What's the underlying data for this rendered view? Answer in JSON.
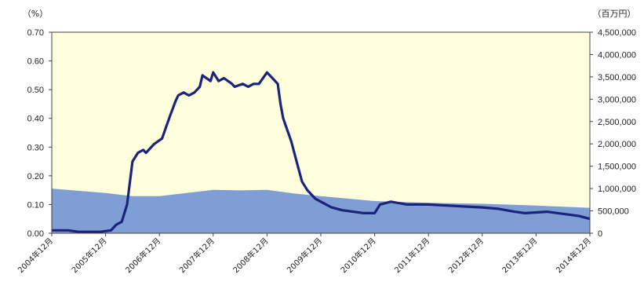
{
  "chart_data": {
    "type": "line",
    "title": "",
    "left_axis": {
      "unit_label": "（%）",
      "ylim": [
        0,
        0.7
      ],
      "ticks": [
        "0.00",
        "0.10",
        "0.20",
        "0.30",
        "0.40",
        "0.50",
        "0.60",
        "0.70"
      ]
    },
    "right_axis": {
      "unit_label": "（百万円）",
      "ylim": [
        0,
        4500000
      ],
      "ticks": [
        "0",
        "500,000",
        "1,000,000",
        "1,500,000",
        "2,000,000",
        "2,500,000",
        "3,000,000",
        "3,500,000",
        "4,000,000",
        "4,500,000"
      ]
    },
    "categories": [
      "2004年12月",
      "2005年12月",
      "2006年12月",
      "2007年12月",
      "2008年12月",
      "2009年12月",
      "2010年12月",
      "2011年12月",
      "2012年12月",
      "2013年12月",
      "2014年12月"
    ],
    "series": [
      {
        "kind": "area",
        "axis": "right",
        "color": "#7f9fd4",
        "x": [
          0,
          1,
          1.5,
          2,
          2.5,
          3,
          3.5,
          4,
          4.5,
          5,
          6,
          7,
          8,
          9,
          10
        ],
        "values": [
          1000000,
          900000,
          830000,
          830000,
          900000,
          970000,
          960000,
          970000,
          890000,
          830000,
          720000,
          680000,
          660000,
          620000,
          570000
        ]
      },
      {
        "kind": "line",
        "axis": "left",
        "color": "#1a237e",
        "x": [
          0,
          0.3,
          0.5,
          0.7,
          0.9,
          1.1,
          1.2,
          1.3,
          1.4,
          1.5,
          1.6,
          1.7,
          1.75,
          1.9,
          2.05,
          2.2,
          2.3,
          2.35,
          2.45,
          2.55,
          2.65,
          2.75,
          2.8,
          2.95,
          3.0,
          3.1,
          3.2,
          3.35,
          3.4,
          3.55,
          3.65,
          3.75,
          3.85,
          4.0,
          4.1,
          4.2,
          4.25,
          4.3,
          4.45,
          4.55,
          4.65,
          4.75,
          4.9,
          5.0,
          5.2,
          5.4,
          5.6,
          5.8,
          6.0,
          6.1,
          6.3,
          6.6,
          7.0,
          7.5,
          8.0,
          8.3,
          8.6,
          8.8,
          9.2,
          9.6,
          9.8,
          10.0
        ],
        "values": [
          0.01,
          0.01,
          0.005,
          0.005,
          0.005,
          0.01,
          0.03,
          0.04,
          0.1,
          0.25,
          0.28,
          0.29,
          0.28,
          0.31,
          0.33,
          0.41,
          0.46,
          0.48,
          0.49,
          0.48,
          0.49,
          0.51,
          0.55,
          0.53,
          0.56,
          0.53,
          0.54,
          0.52,
          0.51,
          0.52,
          0.51,
          0.52,
          0.52,
          0.56,
          0.54,
          0.52,
          0.45,
          0.4,
          0.32,
          0.25,
          0.18,
          0.15,
          0.12,
          0.11,
          0.09,
          0.08,
          0.075,
          0.07,
          0.07,
          0.1,
          0.11,
          0.1,
          0.1,
          0.095,
          0.09,
          0.085,
          0.075,
          0.07,
          0.075,
          0.065,
          0.06,
          0.05
        ]
      }
    ],
    "grid": false,
    "background_color": "#ffffdd"
  }
}
